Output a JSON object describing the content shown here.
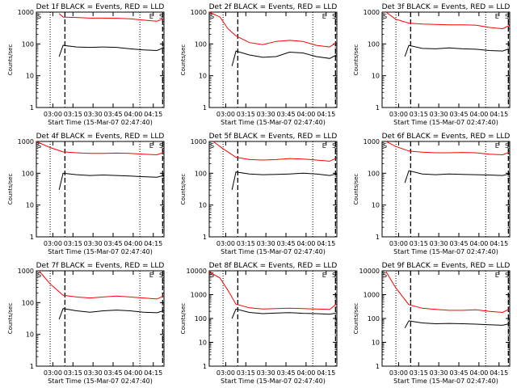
{
  "figure": {
    "x_label_common": "Start Time (15-Mar-07 02:47:40)",
    "y_label_common": "Counts/sec",
    "x_tick_labels": [
      "03:00",
      "03:15",
      "03:30",
      "03:45",
      "04:00",
      "04:15"
    ],
    "colors": {
      "events": "#000000",
      "lld": "#ff0000",
      "axis": "#000000"
    },
    "marker_labels": [
      "S",
      "E",
      "S"
    ]
  },
  "chart_data": [
    {
      "type": "line",
      "title": "Det 1f BLACK = Events, RED = LLD",
      "xlabel": "Start Time (15-Mar-07 02:47:40)",
      "ylabel": "Counts/sec",
      "y_scale": "log",
      "xlim": [
        "02:47:40",
        "04:23:00"
      ],
      "ylim": [
        1,
        1000
      ],
      "y_tick_labels": [
        "1",
        "10",
        "100",
        "1000"
      ],
      "vertical_markers": {
        "dotted": [
          "02:58",
          "04:05"
        ],
        "dashed": [
          "03:09",
          "04:22"
        ]
      },
      "series": [
        {
          "name": "Events",
          "color": "#000000",
          "x_minutes": [
            17,
            20,
            30,
            40,
            50,
            60,
            70,
            80,
            90,
            95
          ],
          "y": [
            40,
            90,
            80,
            78,
            80,
            78,
            70,
            65,
            62,
            75
          ]
        },
        {
          "name": "LLD",
          "color": "#ff0000",
          "x_minutes": [
            17,
            20,
            30,
            40,
            50,
            60,
            70,
            80,
            90,
            95
          ],
          "y": [
            900,
            700,
            680,
            650,
            650,
            640,
            620,
            560,
            520,
            620
          ]
        }
      ]
    },
    {
      "type": "line",
      "title": "Det 2f BLACK = Events, RED = LLD",
      "xlabel": "Start Time (15-Mar-07 02:47:40)",
      "ylabel": "Counts/sec",
      "y_scale": "log",
      "xlim": [
        "02:47:40",
        "04:23:00"
      ],
      "ylim": [
        1,
        1000
      ],
      "y_tick_labels": [
        "1",
        "10",
        "100",
        "1000"
      ],
      "vertical_markers": {
        "dotted": [
          "02:58",
          "04:05"
        ],
        "dashed": [
          "03:09",
          "04:22"
        ]
      },
      "series": [
        {
          "name": "Events",
          "color": "#000000",
          "x_minutes": [
            17,
            20,
            30,
            40,
            50,
            60,
            70,
            80,
            90,
            95
          ],
          "y": [
            20,
            60,
            45,
            38,
            40,
            55,
            52,
            40,
            35,
            45
          ]
        },
        {
          "name": "LLD",
          "color": "#ff0000",
          "x_minutes": [
            0,
            8,
            14,
            20,
            30,
            40,
            50,
            60,
            70,
            80,
            90,
            95
          ],
          "y": [
            1000,
            700,
            300,
            180,
            110,
            95,
            120,
            130,
            120,
            90,
            80,
            110
          ]
        }
      ]
    },
    {
      "type": "line",
      "title": "Det 3f BLACK = Events, RED = LLD",
      "xlabel": "Start Time (15-Mar-07 02:47:40)",
      "ylabel": "Counts/sec",
      "y_scale": "log",
      "xlim": [
        "02:47:40",
        "04:23:00"
      ],
      "ylim": [
        1,
        1000
      ],
      "y_tick_labels": [
        "1",
        "10",
        "100",
        "1000"
      ],
      "vertical_markers": {
        "dotted": [
          "02:58",
          "04:05"
        ],
        "dashed": [
          "03:09",
          "04:22"
        ]
      },
      "series": [
        {
          "name": "Events",
          "color": "#000000",
          "x_minutes": [
            17,
            20,
            30,
            40,
            50,
            60,
            70,
            80,
            90,
            95
          ],
          "y": [
            40,
            90,
            72,
            70,
            75,
            70,
            68,
            62,
            60,
            70
          ]
        },
        {
          "name": "LLD",
          "color": "#ff0000",
          "x_minutes": [
            3,
            10,
            20,
            30,
            40,
            50,
            60,
            70,
            80,
            90,
            95
          ],
          "y": [
            1000,
            600,
            450,
            420,
            410,
            400,
            400,
            390,
            330,
            300,
            380
          ]
        }
      ]
    },
    {
      "type": "line",
      "title": "Det 4f BLACK = Events, RED = LLD",
      "xlabel": "Start Time (15-Mar-07 02:47:40)",
      "ylabel": "Counts/sec",
      "y_scale": "log",
      "xlim": [
        "02:47:40",
        "04:23:00"
      ],
      "ylim": [
        1,
        1000
      ],
      "y_tick_labels": [
        "1",
        "10",
        "100",
        "1000"
      ],
      "vertical_markers": {
        "dotted": [
          "02:58",
          "04:05"
        ],
        "dashed": [
          "03:09",
          "04:22"
        ]
      },
      "series": [
        {
          "name": "Events",
          "color": "#000000",
          "x_minutes": [
            17,
            20,
            30,
            40,
            50,
            60,
            70,
            80,
            90,
            95
          ],
          "y": [
            30,
            100,
            90,
            85,
            88,
            85,
            82,
            78,
            75,
            85
          ]
        },
        {
          "name": "LLD",
          "color": "#ff0000",
          "x_minutes": [
            0,
            10,
            20,
            30,
            40,
            50,
            60,
            70,
            80,
            90,
            95
          ],
          "y": [
            1000,
            650,
            470,
            440,
            420,
            420,
            430,
            420,
            400,
            380,
            450
          ]
        }
      ]
    },
    {
      "type": "line",
      "title": "Det 5f BLACK = Events, RED = LLD",
      "xlabel": "Start Time (15-Mar-07 02:47:40)",
      "ylabel": "Counts/sec",
      "y_scale": "log",
      "xlim": [
        "02:47:40",
        "04:23:00"
      ],
      "ylim": [
        1,
        1000
      ],
      "y_tick_labels": [
        "1",
        "10",
        "100",
        "1000"
      ],
      "vertical_markers": {
        "dotted": [
          "02:58",
          "04:05"
        ],
        "dashed": [
          "03:09",
          "04:22"
        ]
      },
      "series": [
        {
          "name": "Events",
          "color": "#000000",
          "x_minutes": [
            17,
            20,
            30,
            40,
            50,
            60,
            70,
            80,
            90,
            95
          ],
          "y": [
            30,
            110,
            95,
            90,
            92,
            95,
            100,
            95,
            85,
            95
          ]
        },
        {
          "name": "LLD",
          "color": "#ff0000",
          "x_minutes": [
            3,
            10,
            20,
            30,
            40,
            50,
            60,
            70,
            80,
            90,
            95
          ],
          "y": [
            1000,
            600,
            320,
            270,
            260,
            270,
            290,
            280,
            260,
            240,
            300
          ]
        }
      ]
    },
    {
      "type": "line",
      "title": "Det 6f BLACK = Events, RED = LLD",
      "xlabel": "Start Time (15-Mar-07 02:47:40)",
      "ylabel": "Counts/sec",
      "y_scale": "log",
      "xlim": [
        "02:47:40",
        "04:23:00"
      ],
      "ylim": [
        1,
        1000
      ],
      "y_tick_labels": [
        "1",
        "10",
        "100",
        "1000"
      ],
      "vertical_markers": {
        "dotted": [
          "02:58",
          "04:05"
        ],
        "dashed": [
          "03:09",
          "04:22"
        ]
      },
      "series": [
        {
          "name": "Events",
          "color": "#000000",
          "x_minutes": [
            17,
            20,
            30,
            40,
            50,
            60,
            70,
            80,
            90,
            95
          ],
          "y": [
            50,
            120,
            95,
            90,
            95,
            92,
            90,
            88,
            85,
            95
          ]
        },
        {
          "name": "LLD",
          "color": "#ff0000",
          "x_minutes": [
            3,
            10,
            20,
            30,
            40,
            50,
            60,
            70,
            80,
            90,
            95
          ],
          "y": [
            1000,
            700,
            500,
            460,
            440,
            440,
            450,
            440,
            400,
            380,
            460
          ]
        }
      ]
    },
    {
      "type": "line",
      "title": "Det 7f BLACK = Events, RED = LLD",
      "xlabel": "Start Time (15-Mar-07 02:47:40)",
      "ylabel": "Counts/sec",
      "y_scale": "log",
      "xlim": [
        "02:47:40",
        "04:23:00"
      ],
      "ylim": [
        1,
        1000
      ],
      "y_tick_labels": [
        "1",
        "10",
        "100",
        "1000"
      ],
      "vertical_markers": {
        "dotted": [
          "02:58",
          "04:05"
        ],
        "dashed": [
          "03:09",
          "04:22"
        ]
      },
      "series": [
        {
          "name": "Events",
          "color": "#000000",
          "x_minutes": [
            17,
            20,
            30,
            40,
            50,
            60,
            70,
            80,
            90,
            95
          ],
          "y": [
            30,
            65,
            55,
            50,
            55,
            58,
            55,
            50,
            48,
            55
          ]
        },
        {
          "name": "LLD",
          "color": "#ff0000",
          "x_minutes": [
            2,
            10,
            20,
            30,
            40,
            50,
            60,
            70,
            80,
            90,
            95
          ],
          "y": [
            1000,
            400,
            170,
            150,
            140,
            150,
            160,
            150,
            140,
            130,
            160
          ]
        }
      ]
    },
    {
      "type": "line",
      "title": "Det 8f BLACK = Events, RED = LLD",
      "xlabel": "Start Time (15-Mar-07 02:47:40)",
      "ylabel": "Counts/sec",
      "y_scale": "log",
      "xlim": [
        "02:47:40",
        "04:23:00"
      ],
      "ylim": [
        1,
        10000
      ],
      "y_tick_labels": [
        "1",
        "10",
        "100",
        "1000",
        "10000"
      ],
      "vertical_markers": {
        "dotted": [
          "02:58",
          "04:05"
        ],
        "dashed": [
          "03:09",
          "04:22"
        ]
      },
      "series": [
        {
          "name": "Events",
          "color": "#000000",
          "x_minutes": [
            17,
            20,
            30,
            40,
            50,
            60,
            70,
            80,
            90,
            95
          ],
          "y": [
            100,
            250,
            180,
            160,
            170,
            175,
            165,
            160,
            150,
            170
          ]
        },
        {
          "name": "LLD",
          "color": "#ff0000",
          "x_minutes": [
            0,
            8,
            14,
            20,
            30,
            40,
            50,
            60,
            70,
            80,
            90,
            95
          ],
          "y": [
            9000,
            5000,
            1500,
            400,
            280,
            250,
            260,
            270,
            260,
            250,
            240,
            400
          ]
        }
      ]
    },
    {
      "type": "line",
      "title": "Det 9f BLACK = Events, RED = LLD",
      "xlabel": "Start Time (15-Mar-07 02:47:40)",
      "ylabel": "Counts/sec",
      "y_scale": "log",
      "xlim": [
        "02:47:40",
        "04:23:00"
      ],
      "ylim": [
        1,
        10000
      ],
      "y_tick_labels": [
        "1",
        "10",
        "100",
        "1000",
        "10000"
      ],
      "vertical_markers": {
        "dotted": [
          "02:58",
          "04:05"
        ],
        "dashed": [
          "03:09",
          "04:22"
        ]
      },
      "series": [
        {
          "name": "Events",
          "color": "#000000",
          "x_minutes": [
            17,
            20,
            30,
            40,
            50,
            60,
            70,
            80,
            90,
            95
          ],
          "y": [
            40,
            80,
            65,
            60,
            62,
            60,
            58,
            55,
            52,
            60
          ]
        },
        {
          "name": "LLD",
          "color": "#ff0000",
          "x_minutes": [
            3,
            10,
            20,
            30,
            40,
            50,
            60,
            70,
            80,
            90,
            95
          ],
          "y": [
            9000,
            2000,
            380,
            270,
            240,
            220,
            220,
            230,
            200,
            180,
            250
          ]
        }
      ]
    }
  ]
}
